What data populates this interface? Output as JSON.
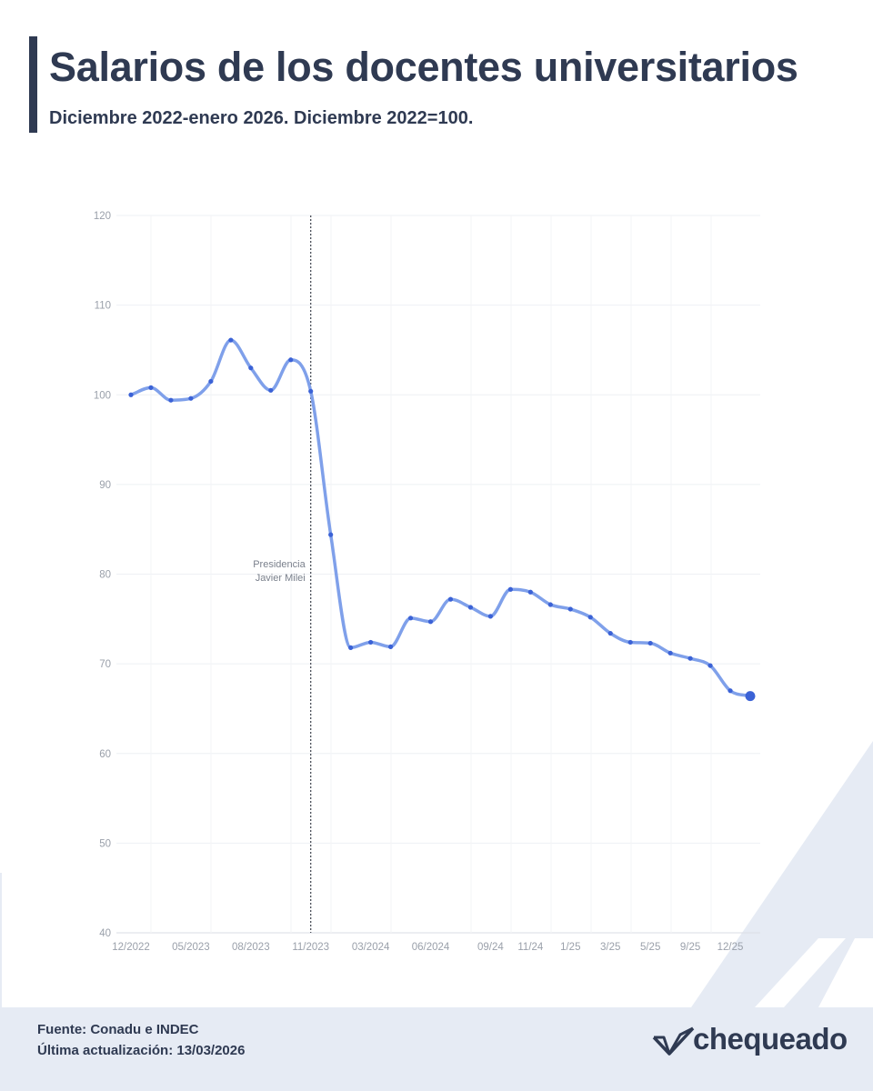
{
  "header": {
    "title": "Salarios de los docentes universitarios",
    "subtitle": "Diciembre 2022-enero 2026. Diciembre 2022=100."
  },
  "footer": {
    "source": "Fuente: Conadu e INDEC",
    "updated": "Última actualización: 13/03/2026",
    "logo_text": "chequeado"
  },
  "colors": {
    "line": "#7fa0ea",
    "point": "#3b62d6",
    "text_dark": "#2f3a52",
    "footer_bg": "#e6ebf4"
  },
  "chart_data": {
    "type": "line",
    "title": "Salarios de los docentes universitarios",
    "subtitle": "Diciembre 2022-enero 2026. Diciembre 2022=100.",
    "xlabel": "",
    "ylabel": "",
    "ylim": [
      40,
      120
    ],
    "yticks": [
      40,
      50,
      60,
      70,
      80,
      90,
      100,
      110,
      120
    ],
    "grid": true,
    "x_tick_labels": [
      {
        "index": 0,
        "label": "12/2022"
      },
      {
        "index": 3,
        "label": "05/2023"
      },
      {
        "index": 6,
        "label": "08/2023"
      },
      {
        "index": 9,
        "label": "11/2023"
      },
      {
        "index": 12,
        "label": "03/2024"
      },
      {
        "index": 15,
        "label": "06/2024"
      },
      {
        "index": 18,
        "label": "09/24"
      },
      {
        "index": 20,
        "label": "11/24"
      },
      {
        "index": 22,
        "label": "1/25"
      },
      {
        "index": 24,
        "label": "3/25"
      },
      {
        "index": 26,
        "label": "5/25"
      },
      {
        "index": 28,
        "label": "9/25"
      },
      {
        "index": 30,
        "label": "12/25"
      }
    ],
    "series": [
      {
        "values": [
          100.0,
          100.8,
          99.4,
          99.6,
          101.5,
          106.1,
          103.0,
          100.5,
          103.9,
          100.4,
          84.4,
          71.8,
          72.4,
          71.9,
          75.1,
          74.7,
          77.2,
          76.3,
          75.3,
          78.3,
          78.0,
          76.6,
          76.1,
          75.2,
          73.4,
          72.4,
          72.3,
          71.2,
          70.6,
          69.8,
          67.0,
          66.4
        ]
      }
    ],
    "annotation": {
      "index": 9,
      "lines": [
        "Presidencia",
        "Javier Milei"
      ]
    }
  }
}
